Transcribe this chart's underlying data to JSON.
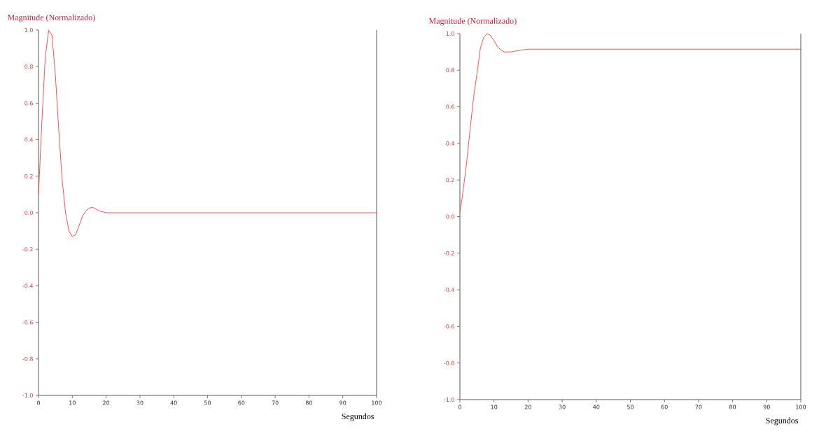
{
  "chart_data": [
    {
      "type": "line",
      "ylabel": "Magnitude (Normalizado)",
      "xlabel": "Segundos",
      "xlim": [
        0,
        100
      ],
      "ylim": [
        -1,
        1
      ],
      "xticks": [
        0,
        10,
        20,
        30,
        40,
        50,
        60,
        70,
        80,
        90,
        100
      ],
      "yticks": [
        {
          "value": 1,
          "label": "1.0"
        },
        {
          "value": 0.8,
          "label": "0.8"
        },
        {
          "value": 0.6,
          "label": "0.6"
        },
        {
          "value": 0.4,
          "label": "0.4"
        },
        {
          "value": 0.2,
          "label": "0.2"
        },
        {
          "value": 0,
          "label": "0.0"
        },
        {
          "value": -0.2,
          "label": "-0.2"
        },
        {
          "value": -0.4,
          "label": "-0.4"
        },
        {
          "value": -0.6,
          "label": "-0.6"
        },
        {
          "value": -0.8,
          "label": "-0.8"
        },
        {
          "value": -1,
          "label": "-1.0"
        }
      ],
      "x": [
        0,
        1,
        2,
        3,
        4,
        5,
        6,
        7,
        8,
        9,
        10,
        11,
        12,
        13,
        14,
        15,
        16,
        17,
        18,
        20,
        25,
        30,
        40,
        50,
        60,
        70,
        80,
        90,
        100
      ],
      "series": [
        {
          "color": "#ff5050",
          "values": [
            0.1,
            0.5,
            0.85,
            1.0,
            0.97,
            0.75,
            0.45,
            0.18,
            0.0,
            -0.1,
            -0.13,
            -0.12,
            -0.07,
            -0.02,
            0.01,
            0.025,
            0.03,
            0.02,
            0.01,
            0.0,
            0.0,
            0.0,
            0.0,
            0.0,
            0.0,
            0.0,
            0.0,
            0.0,
            0.0
          ]
        }
      ]
    },
    {
      "type": "line",
      "ylabel": "Magnitude (Normalizado)",
      "xlabel": "Segundos",
      "xlim": [
        0,
        100
      ],
      "ylim": [
        -1,
        1
      ],
      "xticks": [
        0,
        10,
        20,
        30,
        40,
        50,
        60,
        70,
        80,
        90,
        100
      ],
      "yticks": [
        {
          "value": 1,
          "label": "1.0"
        },
        {
          "value": 0.8,
          "label": "0.8"
        },
        {
          "value": 0.6,
          "label": "0.6"
        },
        {
          "value": 0.4,
          "label": "0.4"
        },
        {
          "value": 0.2,
          "label": "0.2"
        },
        {
          "value": 0,
          "label": "0.0"
        },
        {
          "value": -0.2,
          "label": "-0.2"
        },
        {
          "value": -0.4,
          "label": "-0.4"
        },
        {
          "value": -0.6,
          "label": "-0.6"
        },
        {
          "value": -0.8,
          "label": "-0.8"
        },
        {
          "value": -1,
          "label": "-1.0"
        }
      ],
      "x": [
        0,
        1,
        2,
        3,
        4,
        5,
        6,
        7,
        8,
        9,
        10,
        11,
        12,
        13,
        15,
        18,
        20,
        25,
        30,
        40,
        50,
        60,
        70,
        80,
        90,
        100
      ],
      "series": [
        {
          "color": "#ff5050",
          "values": [
            0.02,
            0.15,
            0.3,
            0.48,
            0.65,
            0.78,
            0.92,
            0.98,
            1.0,
            0.99,
            0.96,
            0.93,
            0.91,
            0.9,
            0.9,
            0.91,
            0.915,
            0.915,
            0.915,
            0.915,
            0.915,
            0.915,
            0.915,
            0.915,
            0.915,
            0.915
          ]
        }
      ]
    }
  ]
}
